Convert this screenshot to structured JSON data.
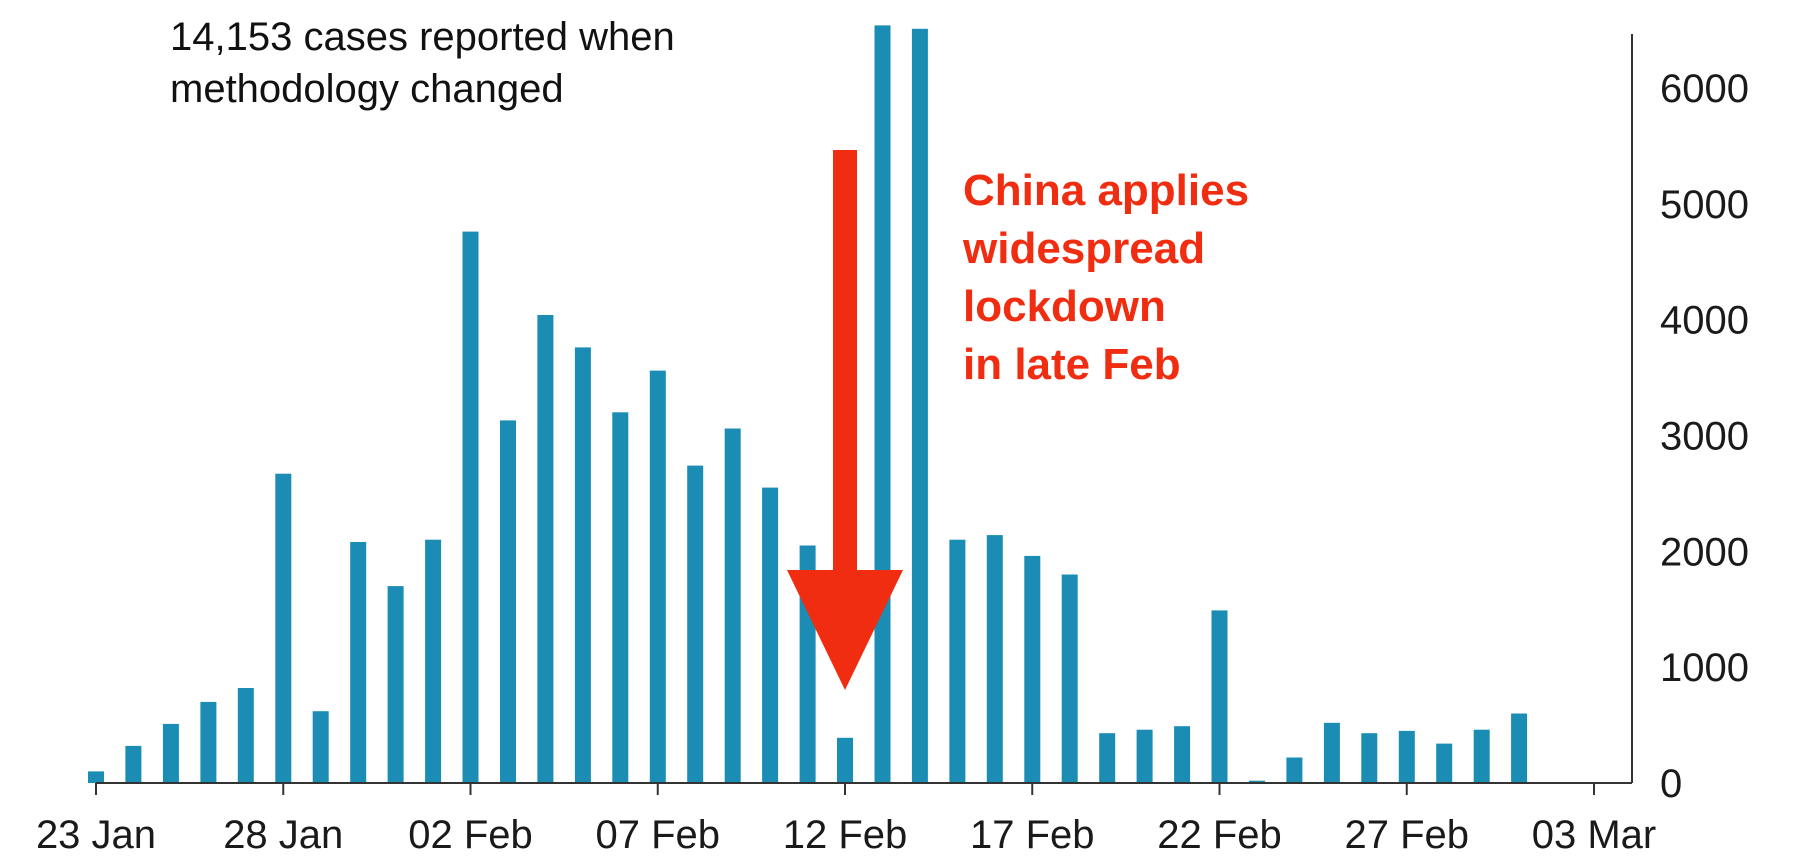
{
  "chart_data": {
    "type": "bar",
    "title": "",
    "xlabel": "",
    "ylabel": "",
    "x": [
      "23 Jan",
      "24 Jan",
      "25 Jan",
      "26 Jan",
      "27 Jan",
      "28 Jan",
      "29 Jan",
      "30 Jan",
      "31 Jan",
      "01 Feb",
      "02 Feb",
      "03 Feb",
      "04 Feb",
      "05 Feb",
      "06 Feb",
      "07 Feb",
      "08 Feb",
      "09 Feb",
      "10 Feb",
      "11 Feb",
      "12 Feb",
      "13 Feb",
      "14 Feb",
      "15 Feb",
      "16 Feb",
      "17 Feb",
      "18 Feb",
      "19 Feb",
      "20 Feb",
      "21 Feb",
      "22 Feb",
      "23 Feb",
      "24 Feb",
      "25 Feb",
      "26 Feb",
      "27 Feb",
      "28 Feb",
      "29 Feb",
      "01 Mar",
      "02 Mar",
      "03 Mar"
    ],
    "values": [
      100,
      320,
      510,
      700,
      820,
      2670,
      620,
      2080,
      1700,
      2100,
      4760,
      3130,
      4040,
      3760,
      3200,
      3560,
      2740,
      3060,
      2550,
      2050,
      390,
      6540,
      6510,
      2100,
      2140,
      1960,
      1800,
      430,
      460,
      490,
      1490,
      20,
      220,
      520,
      430,
      450,
      340,
      460,
      600,
      null,
      null
    ],
    "ylim": [
      0,
      6500
    ],
    "y_axis_side": "right",
    "y_ticks": [
      0,
      1000,
      2000,
      3000,
      4000,
      5000,
      6000
    ],
    "x_tick_labels": [
      "23 Jan",
      "28 Jan",
      "02 Feb",
      "07 Feb",
      "12 Feb",
      "17 Feb",
      "22 Feb",
      "27 Feb",
      "03 Mar"
    ],
    "grid": false,
    "legend": "none",
    "bar_color": "#1b8db5",
    "annotations": [
      {
        "id": "methodology",
        "lines": [
          "14,153 cases reported when",
          "methodology changed"
        ],
        "color": "#111111"
      },
      {
        "id": "lockdown",
        "lines": [
          "China applies",
          "widespread",
          "lockdown",
          "in late Feb"
        ],
        "color": "#f02d10",
        "arrow_at": "12 Feb"
      }
    ]
  }
}
